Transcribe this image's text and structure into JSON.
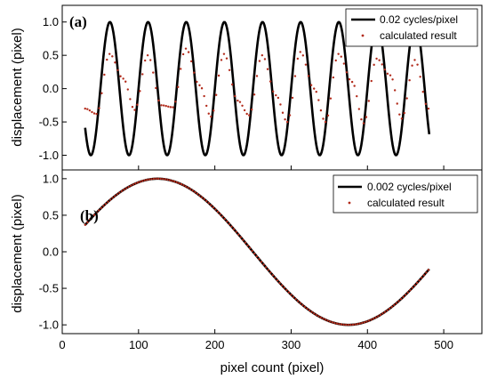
{
  "chart_data": [
    {
      "type": "line",
      "panel_label": "(a)",
      "xlabel": "",
      "ylabel": "displacement (pixel)",
      "xlim": [
        0,
        550
      ],
      "ylim": [
        -1.22,
        1.25
      ],
      "xticks": [
        0,
        100,
        200,
        300,
        400,
        500
      ],
      "yticks": [
        -1.0,
        -0.5,
        0.0,
        0.5,
        1.0
      ],
      "ytick_labels": [
        "-1.0",
        "-0.5",
        "0.0",
        "0.5",
        "1.0"
      ],
      "legend_position": "top-right",
      "series": [
        {
          "name": "0.02 cycles/pixel",
          "style": "solid-line",
          "color": "#000000",
          "function": "sine",
          "amplitude": 1.0,
          "frequency": 0.02,
          "x_range": [
            30,
            481
          ],
          "phase_peak_x": 62.5
        },
        {
          "name": "calculated result",
          "style": "dots",
          "color": "#b22a1a",
          "x": [
            30,
            45,
            62,
            80,
            95,
            112,
            130,
            145,
            162,
            180,
            195,
            212,
            230,
            245,
            262,
            280,
            295,
            312,
            330,
            345,
            362,
            380,
            395,
            412,
            430,
            445,
            462,
            480
          ],
          "y": [
            -0.3,
            -0.38,
            0.52,
            0.15,
            -0.32,
            0.5,
            -0.25,
            -0.28,
            0.6,
            0.05,
            -0.42,
            0.52,
            -0.18,
            -0.4,
            0.5,
            -0.1,
            -0.5,
            0.55,
            0.0,
            -0.5,
            0.52,
            0.1,
            -0.52,
            0.45,
            0.2,
            -0.45,
            0.43,
            -0.3
          ]
        }
      ]
    },
    {
      "type": "line",
      "panel_label": "(b)",
      "xlabel": "pixel count (pixel)",
      "ylabel": "displacement (pixel)",
      "xlim": [
        0,
        550
      ],
      "ylim": [
        -1.12,
        1.12
      ],
      "xticks": [
        0,
        100,
        200,
        300,
        400,
        500
      ],
      "xtick_labels": [
        "0",
        "100",
        "200",
        "300",
        "400",
        "500"
      ],
      "yticks": [
        -1.0,
        -0.5,
        0.0,
        0.5,
        1.0
      ],
      "ytick_labels": [
        "-1.0",
        "-0.5",
        "0.0",
        "0.5",
        "1.0"
      ],
      "legend_position": "top-right",
      "series": [
        {
          "name": "0.002 cycles/pixel",
          "style": "solid-line",
          "color": "#000000",
          "function": "sine",
          "amplitude": 1.0,
          "frequency": 0.002,
          "x_range": [
            30,
            481
          ],
          "phase_peak_x": 125
        },
        {
          "name": "calculated result",
          "style": "dots",
          "color": "#b22a1a",
          "follows_series": 0
        }
      ]
    }
  ]
}
